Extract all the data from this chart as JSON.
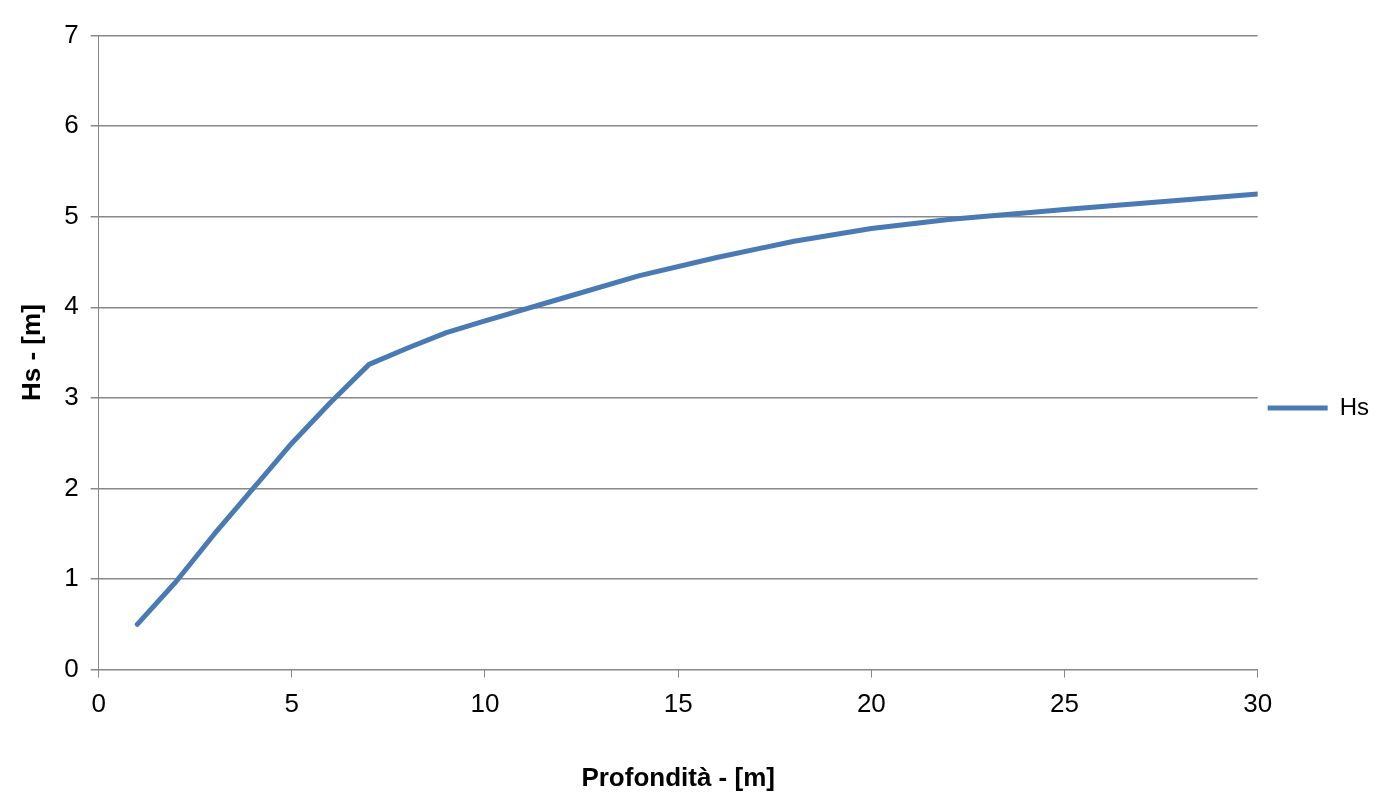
{
  "chart_data": {
    "type": "line",
    "xlabel": "Profondità - [m]",
    "ylabel": "Hs - [m]",
    "series": [
      {
        "name": "Hs",
        "color": "#4a7ab4",
        "x": [
          1,
          2,
          3,
          4,
          5,
          6,
          7,
          8,
          9,
          10,
          12,
          14,
          16,
          18,
          20,
          22,
          25,
          30
        ],
        "values": [
          0.5,
          0.97,
          1.5,
          2.0,
          2.5,
          2.95,
          3.37,
          3.55,
          3.72,
          3.85,
          4.1,
          4.35,
          4.55,
          4.73,
          4.87,
          4.97,
          5.08,
          5.25
        ]
      }
    ],
    "xlim": [
      0,
      30
    ],
    "xticks": [
      0,
      5,
      10,
      15,
      20,
      25,
      30
    ],
    "ylim": [
      0,
      7
    ],
    "yticks": [
      0,
      1,
      2,
      3,
      4,
      5,
      6,
      7
    ],
    "grid": "y",
    "legend": "right",
    "marker": "none",
    "line_style": "solid"
  }
}
